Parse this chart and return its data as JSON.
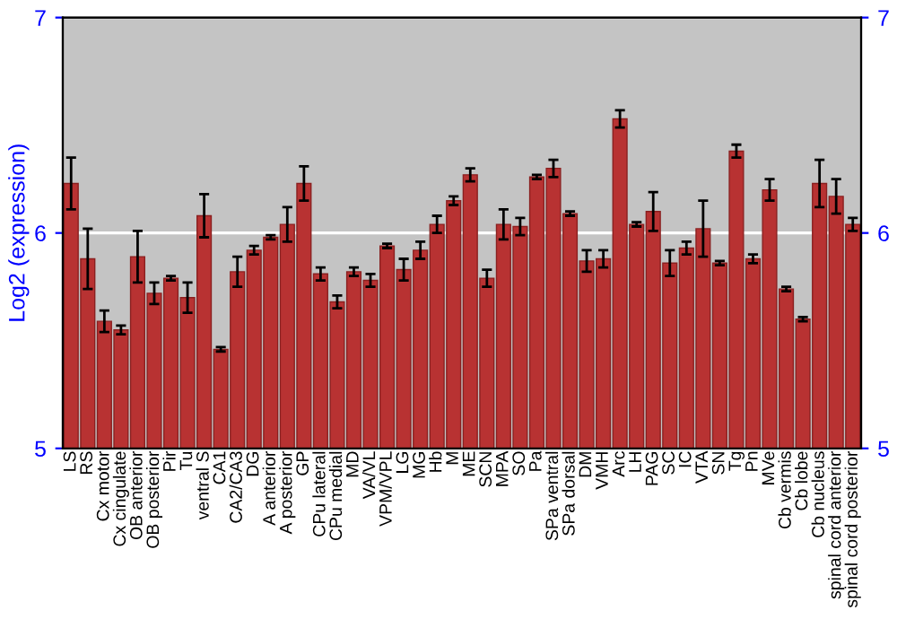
{
  "chart_data": {
    "type": "bar",
    "ylabel": "Log2 (expression)",
    "categories": [
      "LS",
      "RS",
      "Cx motor",
      "Cx cingulate",
      "OB anterior",
      "OB posterior",
      "Pir",
      "Tu",
      "ventral S",
      "CA1",
      "CA2/CA3",
      "DG",
      "A anterior",
      "A posterior",
      "GP",
      "CPu lateral",
      "CPu medial",
      "MD",
      "VA/VL",
      "VPM/VPL",
      "LG",
      "MG",
      "Hb",
      "M",
      "ME",
      "SCN",
      "MPA",
      "SO",
      "Pa",
      "SPa ventral",
      "SPa dorsal",
      "DM",
      "VMH",
      "Arc",
      "LH",
      "PAG",
      "SC",
      "IC",
      "VTA",
      "SN",
      "Tg",
      "Pn",
      "MVe",
      "Cb vermis",
      "Cb lobe",
      "Cb nucleus",
      "spinal cord anterior",
      "spinal cord posterior"
    ],
    "values": [
      6.23,
      5.88,
      5.59,
      5.55,
      5.89,
      5.72,
      5.79,
      5.7,
      6.08,
      5.46,
      5.82,
      5.92,
      5.98,
      6.04,
      6.23,
      5.81,
      5.68,
      5.82,
      5.78,
      5.94,
      5.83,
      5.92,
      6.04,
      6.15,
      6.27,
      5.79,
      6.04,
      6.03,
      6.26,
      6.3,
      6.09,
      5.87,
      5.88,
      6.53,
      6.04,
      6.1,
      5.86,
      5.93,
      6.02,
      5.86,
      6.38,
      5.88,
      6.2,
      5.74,
      5.6,
      6.23,
      6.17,
      6.04
    ],
    "errors": [
      0.12,
      0.14,
      0.05,
      0.02,
      0.12,
      0.05,
      0.01,
      0.07,
      0.1,
      0.01,
      0.07,
      0.02,
      0.01,
      0.08,
      0.08,
      0.03,
      0.03,
      0.02,
      0.03,
      0.01,
      0.05,
      0.04,
      0.04,
      0.02,
      0.03,
      0.04,
      0.07,
      0.04,
      0.01,
      0.04,
      0.01,
      0.05,
      0.04,
      0.04,
      0.01,
      0.09,
      0.06,
      0.03,
      0.13,
      0.01,
      0.03,
      0.02,
      0.05,
      0.01,
      0.01,
      0.11,
      0.08,
      0.03
    ],
    "color": "#b83232",
    "ylim": [
      5,
      7
    ],
    "yticks": [
      5,
      6,
      7
    ],
    "y2lim": [
      5,
      7
    ],
    "y2ticks": [
      5,
      6,
      7
    ],
    "grid": "y"
  }
}
